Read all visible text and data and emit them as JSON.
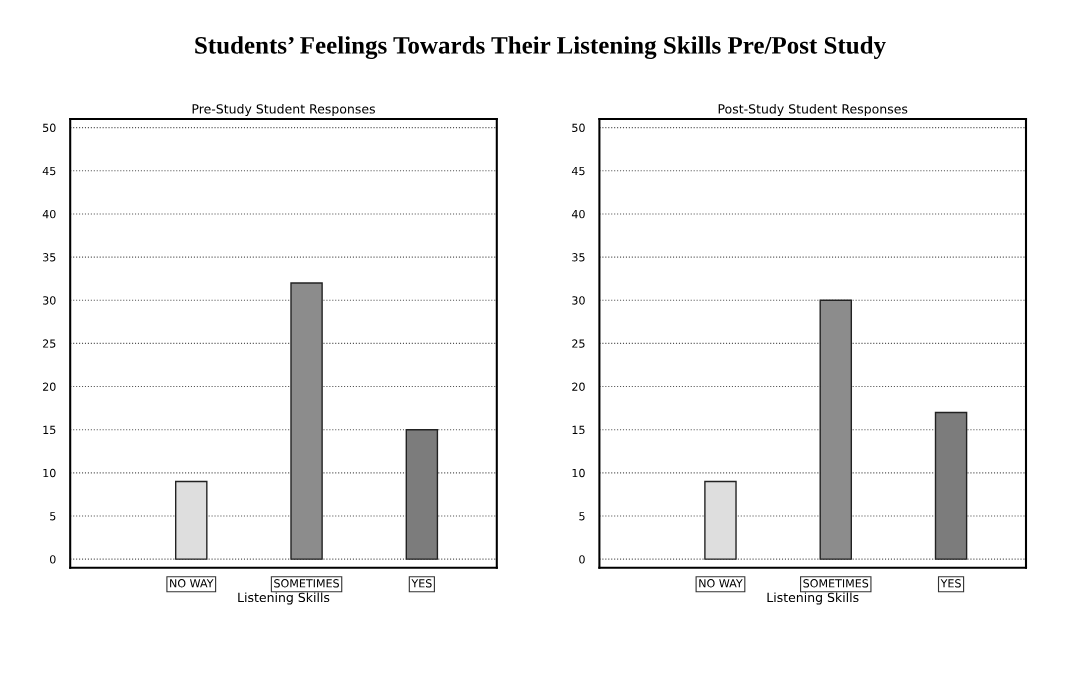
{
  "chart_data": [
    {
      "type": "bar",
      "title": "Pre-Study Student Responses",
      "xlabel": "Listening Skills",
      "categories": [
        "NO WAY",
        "SOMETIMES",
        "YES"
      ],
      "values": [
        9,
        32,
        15
      ],
      "colors": [
        "#dedede",
        "#8c8c8c",
        "#7c7c7c"
      ],
      "ylim": [
        -1,
        51
      ],
      "yticks": [
        0,
        5,
        10,
        15,
        20,
        25,
        30,
        35,
        40,
        45,
        50
      ],
      "grid": "y",
      "annotations": [
        "Students’ Feelings Towards Their Listening Skills Pre/Post Study"
      ]
    },
    {
      "type": "bar",
      "title": "Post-Study Student Responses",
      "xlabel": "Listening Skills",
      "categories": [
        "NO WAY",
        "SOMETIMES",
        "YES"
      ],
      "values": [
        9,
        30,
        17
      ],
      "colors": [
        "#dedede",
        "#8c8c8c",
        "#7c7c7c"
      ],
      "ylim": [
        -1,
        51
      ],
      "yticks": [
        0,
        5,
        10,
        15,
        20,
        25,
        30,
        35,
        40,
        45,
        50
      ],
      "grid": "y"
    }
  ]
}
